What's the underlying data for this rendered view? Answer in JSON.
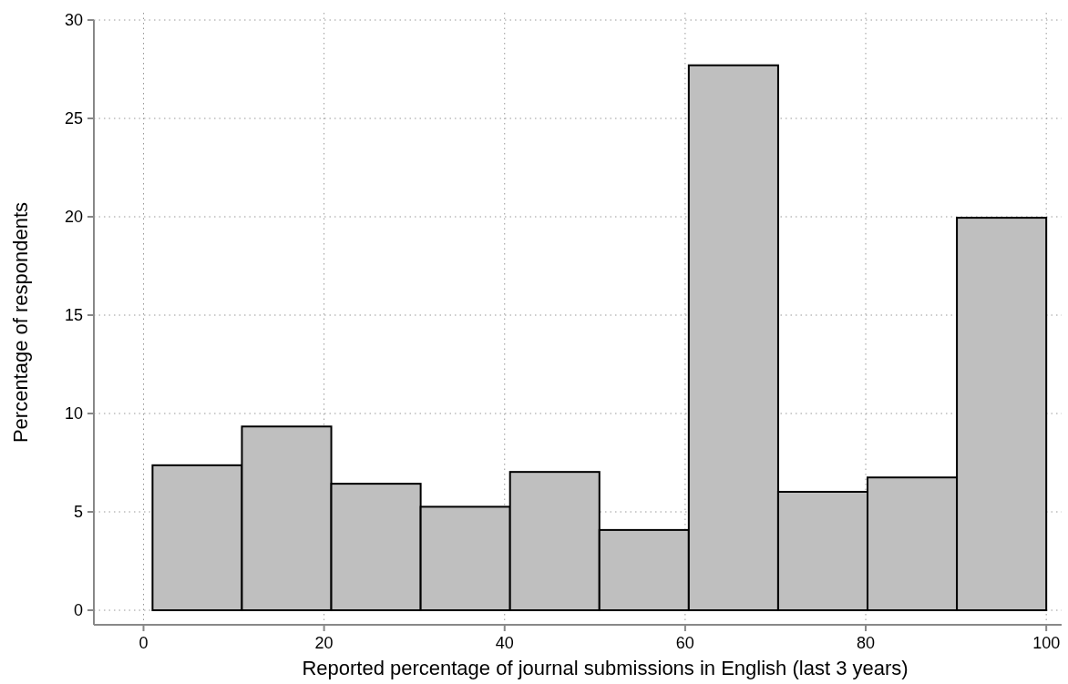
{
  "chart_data": {
    "type": "histogram",
    "xlabel": "Reported percentage of journal submissions in English (last 3 years)",
    "ylabel": "Percentage of respondents",
    "bins": [
      1,
      10.9,
      20.8,
      30.7,
      40.6,
      50.5,
      60.4,
      70.3,
      80.2,
      90.1,
      100
    ],
    "values": [
      7.37,
      9.34,
      6.43,
      5.26,
      7.03,
      4.08,
      27.7,
      6.02,
      6.75,
      19.95
    ],
    "color": "#bfbfbf",
    "xlim": [
      -5.5,
      101.7
    ],
    "ylim": [
      -0.74,
      30
    ],
    "xticks": [
      0,
      20,
      40,
      60,
      80,
      100
    ],
    "yticks": [
      0,
      5,
      10,
      15,
      20,
      25,
      30
    ],
    "grid": true
  }
}
